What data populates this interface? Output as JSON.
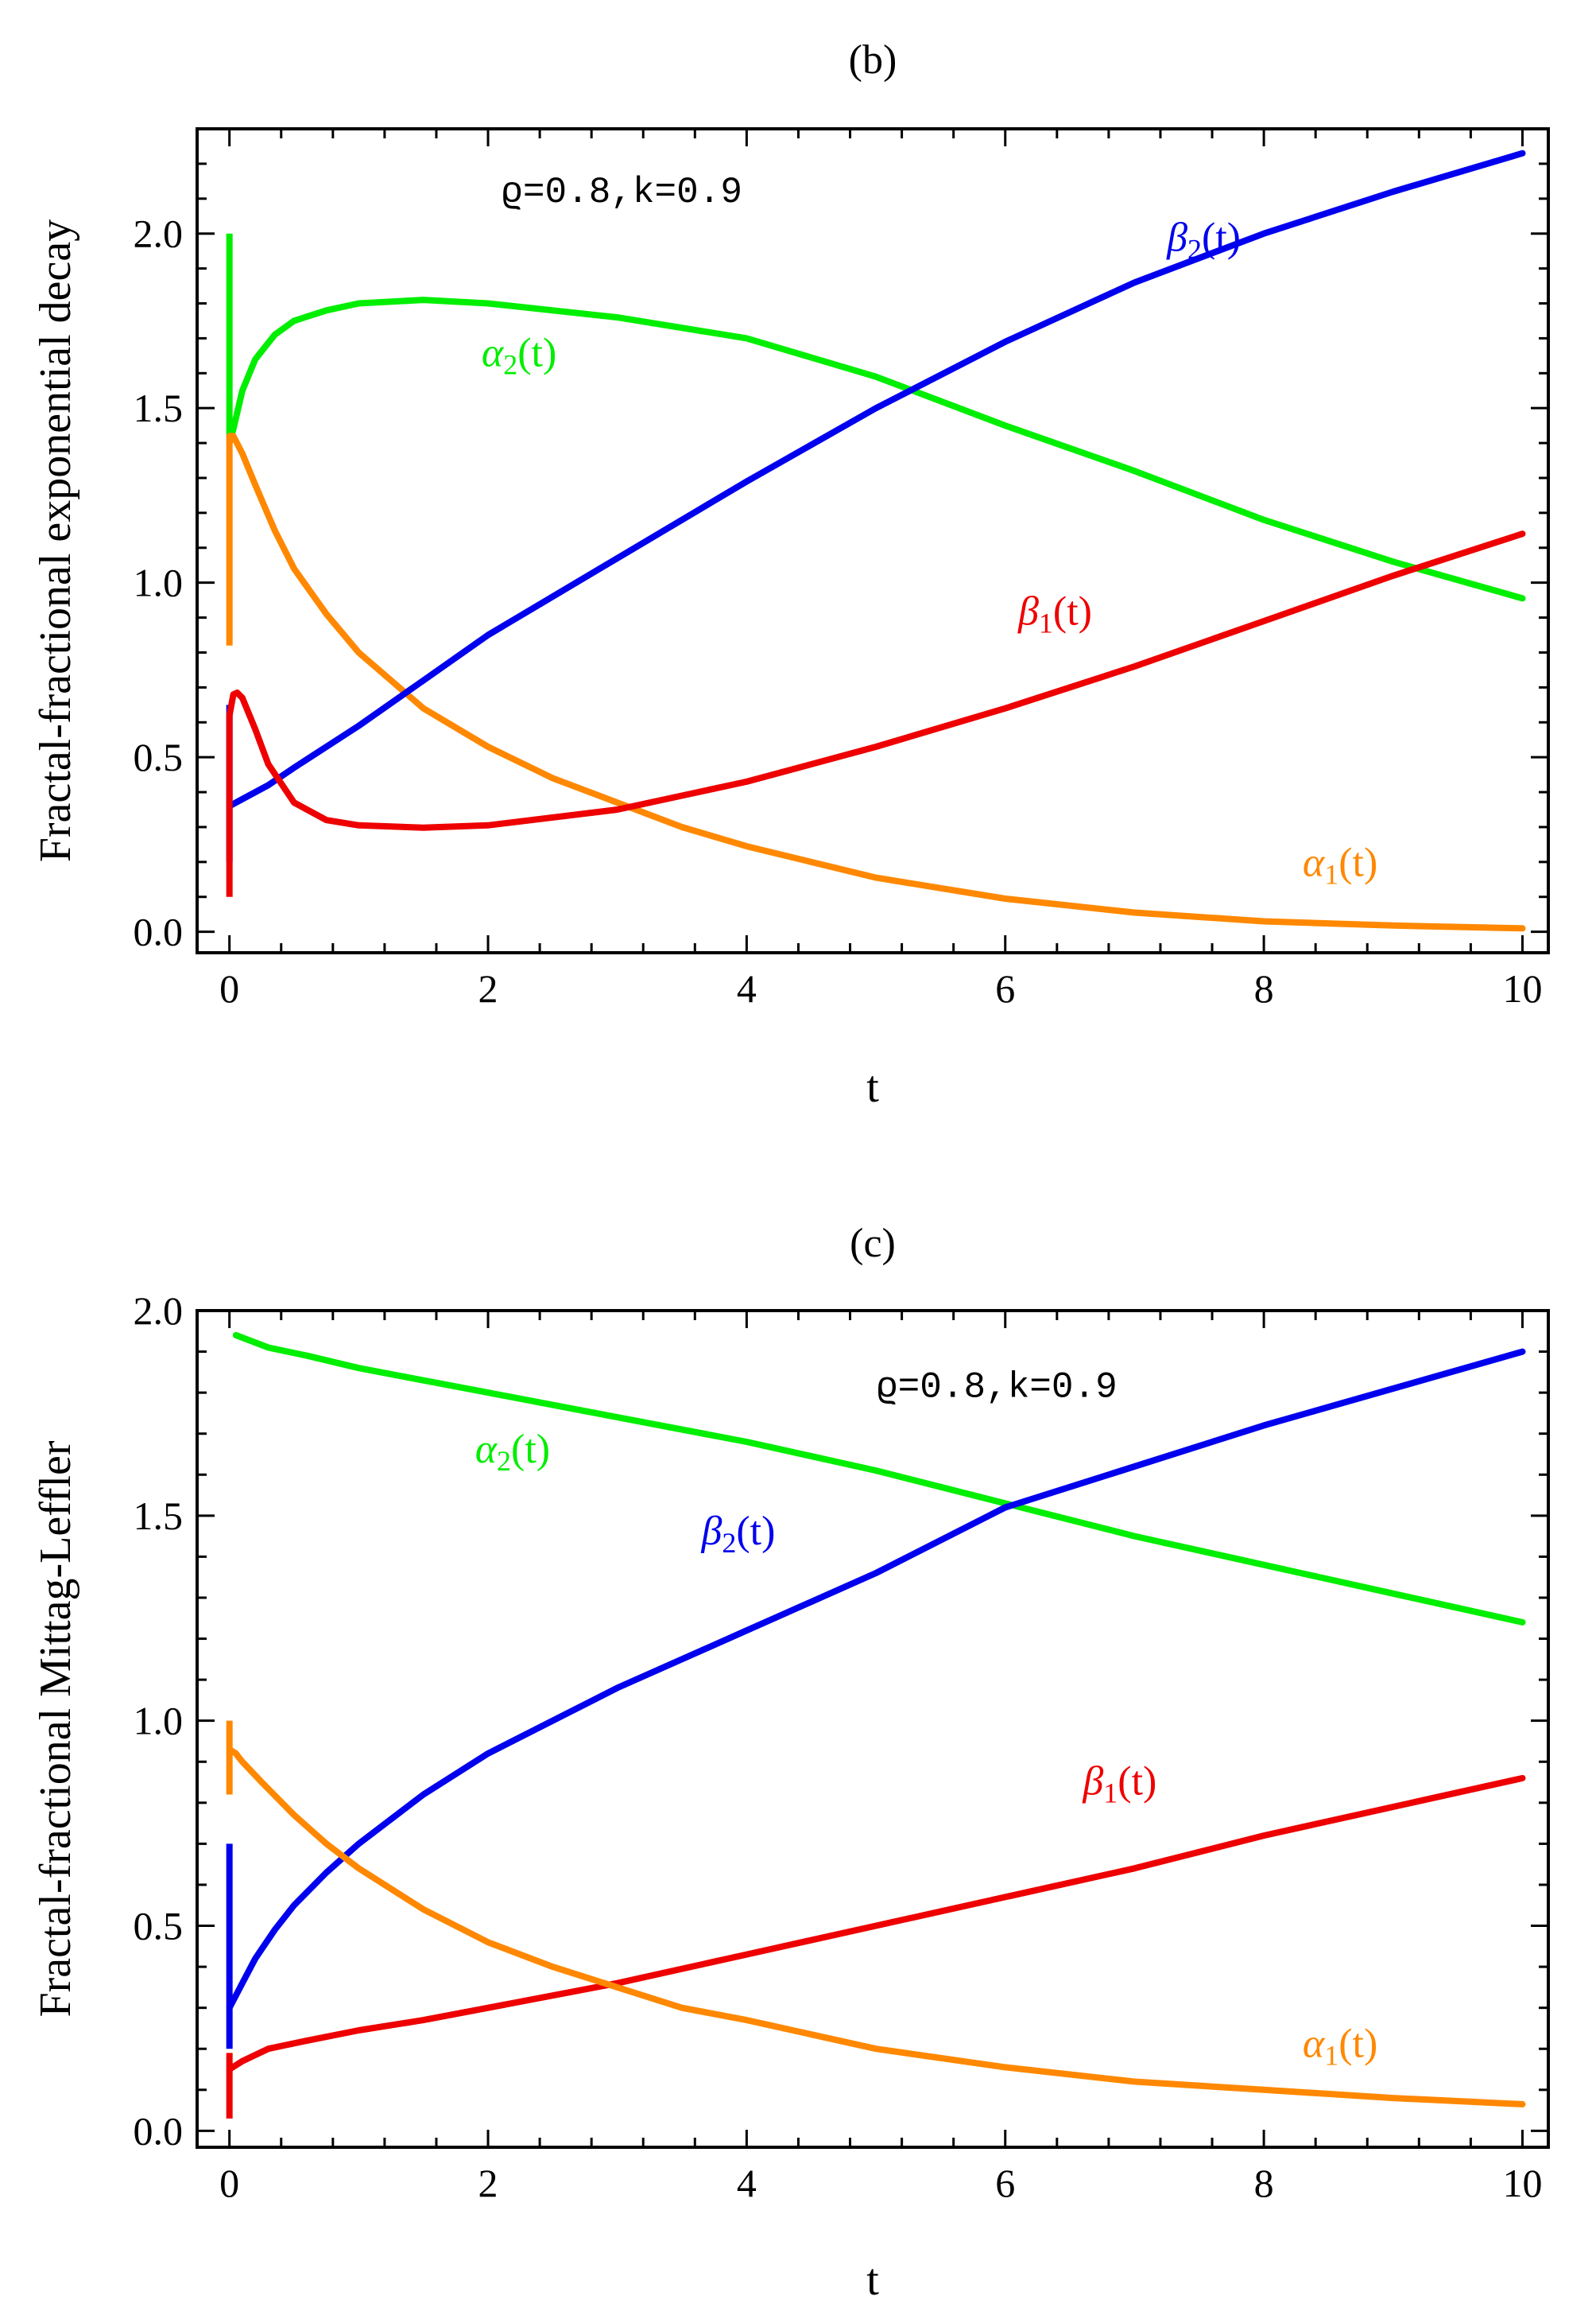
{
  "chart_data": [
    {
      "type": "line",
      "title": "(b)",
      "xlabel": "t",
      "ylabel": "Fractal-fractional exponential decay",
      "xlim": [
        -0.25,
        10.2
      ],
      "ylim": [
        -0.06,
        2.3
      ],
      "xticks": [
        0,
        2,
        4,
        6,
        8,
        10
      ],
      "xtick_labels": [
        "0",
        "2",
        "4",
        "6",
        "8",
        "10"
      ],
      "yticks": [
        0.0,
        0.5,
        1.0,
        1.5,
        2.0
      ],
      "ytick_labels": [
        "0.0",
        "0.5",
        "1.0",
        "1.5",
        "2.0"
      ],
      "annotation": "ϱ=0.8,k=0.9",
      "annotation_at": [
        2.1,
        2.09
      ],
      "series": [
        {
          "name": "α₂(t)",
          "greek": "α",
          "sub": "2",
          "color": "#00ee00",
          "label_at": [
            1.95,
            1.62
          ],
          "x": [
            0,
            0.03,
            0.1,
            0.2,
            0.35,
            0.5,
            0.75,
            1.0,
            1.5,
            2.0,
            2.5,
            3.0,
            4.0,
            5.0,
            6.0,
            7.0,
            8.0,
            9.0,
            10.0
          ],
          "y": [
            1.4,
            1.44,
            1.55,
            1.64,
            1.71,
            1.75,
            1.78,
            1.8,
            1.81,
            1.8,
            1.78,
            1.76,
            1.7,
            1.59,
            1.45,
            1.32,
            1.18,
            1.06,
            0.955
          ],
          "spike": [
            2.0,
            1.42
          ]
        },
        {
          "name": "α₁(t)",
          "greek": "α",
          "sub": "1",
          "color": "#ff8800",
          "label_at": [
            8.3,
            0.16
          ],
          "x": [
            0,
            0.03,
            0.1,
            0.2,
            0.35,
            0.5,
            0.75,
            1.0,
            1.5,
            2.0,
            2.5,
            3.0,
            3.5,
            4.0,
            5.0,
            6.0,
            7.0,
            8.0,
            9.0,
            10.0
          ],
          "y": [
            1.42,
            1.42,
            1.37,
            1.28,
            1.15,
            1.04,
            0.91,
            0.8,
            0.64,
            0.53,
            0.44,
            0.37,
            0.3,
            0.245,
            0.155,
            0.095,
            0.055,
            0.03,
            0.018,
            0.01
          ],
          "spike": [
            0.82,
            1.42
          ]
        },
        {
          "name": "β₂(t)",
          "greek": "β",
          "sub": "2",
          "color": "#0000ee",
          "label_at": [
            7.25,
            1.95
          ],
          "x": [
            0,
            0.1,
            0.3,
            0.5,
            1.0,
            1.5,
            2.0,
            3.0,
            4.0,
            5.0,
            6.0,
            7.0,
            8.0,
            9.0,
            10.0
          ],
          "y": [
            0.36,
            0.38,
            0.42,
            0.47,
            0.59,
            0.72,
            0.85,
            1.07,
            1.29,
            1.5,
            1.69,
            1.86,
            2.0,
            2.12,
            2.23
          ],
          "spike": [
            0.2,
            0.65
          ]
        },
        {
          "name": "β₁(t)",
          "greek": "β",
          "sub": "1",
          "color": "#ee0000",
          "label_at": [
            6.1,
            0.88
          ],
          "x": [
            0,
            0.03,
            0.06,
            0.1,
            0.2,
            0.3,
            0.5,
            0.75,
            1.0,
            1.5,
            2.0,
            3.0,
            4.0,
            5.0,
            6.0,
            7.0,
            8.0,
            9.0,
            10.0
          ],
          "y": [
            0.62,
            0.68,
            0.685,
            0.67,
            0.58,
            0.48,
            0.37,
            0.32,
            0.305,
            0.298,
            0.305,
            0.35,
            0.43,
            0.53,
            0.64,
            0.76,
            0.89,
            1.02,
            1.14
          ],
          "spike": [
            0.1,
            0.62
          ]
        }
      ]
    },
    {
      "type": "line",
      "title": "(c)",
      "xlabel": "t",
      "ylabel": "Fractal-fractional Mittag-Leffler",
      "xlim": [
        -0.25,
        10.2
      ],
      "ylim": [
        -0.04,
        2.0
      ],
      "xticks": [
        0,
        2,
        4,
        6,
        8,
        10
      ],
      "xtick_labels": [
        "0",
        "2",
        "4",
        "6",
        "8",
        "10"
      ],
      "yticks": [
        0.0,
        0.5,
        1.0,
        1.5,
        2.0
      ],
      "ytick_labels": [
        "0.0",
        "0.5",
        "1.0",
        "1.5",
        "2.0"
      ],
      "annotation": "ϱ=0.8,k=0.9",
      "annotation_at": [
        5.0,
        1.79
      ],
      "series": [
        {
          "name": "α₂(t)",
          "greek": "α",
          "sub": "2",
          "color": "#00ee00",
          "label_at": [
            1.9,
            1.63
          ],
          "x": [
            0.05,
            0.3,
            0.6,
            1.0,
            1.5,
            2.0,
            3.0,
            4.0,
            5.0,
            6.0,
            7.0,
            8.0,
            9.0,
            10.0
          ],
          "y": [
            1.94,
            1.91,
            1.89,
            1.86,
            1.83,
            1.8,
            1.74,
            1.68,
            1.61,
            1.53,
            1.45,
            1.38,
            1.31,
            1.24
          ],
          "spike": null
        },
        {
          "name": "β₂(t)",
          "greek": "β",
          "sub": "2",
          "color": "#0000ee",
          "label_at": [
            3.65,
            1.43
          ],
          "x": [
            0,
            0.05,
            0.1,
            0.2,
            0.35,
            0.5,
            0.75,
            1.0,
            1.5,
            2.0,
            3.0,
            4.0,
            5.0,
            6.0,
            7.0,
            8.0,
            9.0,
            10.0
          ],
          "y": [
            0.3,
            0.33,
            0.36,
            0.42,
            0.49,
            0.55,
            0.63,
            0.7,
            0.82,
            0.92,
            1.08,
            1.22,
            1.36,
            1.52,
            1.62,
            1.72,
            1.81,
            1.9
          ],
          "spike": [
            0.2,
            0.7
          ]
        },
        {
          "name": "β₁(t)",
          "greek": "β",
          "sub": "1",
          "color": "#ee0000",
          "label_at": [
            6.6,
            0.82
          ],
          "x": [
            0,
            0.05,
            0.1,
            0.3,
            0.6,
            1.0,
            1.5,
            2.0,
            3.0,
            4.0,
            5.0,
            6.0,
            7.0,
            8.0,
            9.0,
            10.0
          ],
          "y": [
            0.15,
            0.16,
            0.17,
            0.2,
            0.22,
            0.245,
            0.27,
            0.3,
            0.36,
            0.43,
            0.5,
            0.57,
            0.64,
            0.72,
            0.79,
            0.86
          ],
          "spike": [
            0.03,
            0.19
          ]
        },
        {
          "name": "α₁(t)",
          "greek": "α",
          "sub": "1",
          "color": "#ff8800",
          "label_at": [
            8.3,
            0.18
          ],
          "x": [
            0,
            0.05,
            0.1,
            0.25,
            0.5,
            0.75,
            1.0,
            1.5,
            2.0,
            2.5,
            3.0,
            3.5,
            4.0,
            5.0,
            6.0,
            7.0,
            8.0,
            9.0,
            10.0
          ],
          "y": [
            0.93,
            0.92,
            0.9,
            0.85,
            0.77,
            0.7,
            0.64,
            0.54,
            0.46,
            0.4,
            0.35,
            0.3,
            0.27,
            0.2,
            0.155,
            0.12,
            0.1,
            0.08,
            0.065
          ],
          "spike": [
            0.82,
            1.0
          ]
        }
      ]
    }
  ]
}
